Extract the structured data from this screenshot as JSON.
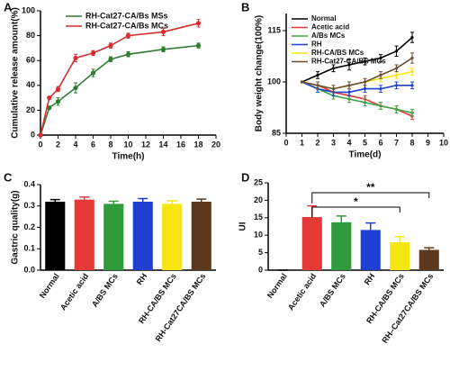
{
  "chart_data": [
    {
      "type": "line",
      "label": "A",
      "xlabel": "Time(h)",
      "ylabel": "Cumulative release amount(%)",
      "xlim": [
        0,
        20
      ],
      "xticks": [
        0,
        2,
        4,
        6,
        8,
        10,
        12,
        14,
        16,
        18,
        20
      ],
      "ylim": [
        0,
        100
      ],
      "yticks": [
        0,
        20,
        40,
        60,
        80,
        100
      ],
      "legend": "upper left",
      "x": [
        0,
        1,
        2,
        4,
        6,
        8,
        10,
        14,
        18
      ],
      "series": [
        {
          "name": "RH-Cat27-CA/Bs MSs",
          "color": "#2e7d32",
          "values": [
            0,
            22,
            27,
            38,
            50,
            61,
            65,
            69,
            72
          ],
          "errors": [
            0,
            1,
            3,
            4,
            3,
            2,
            2,
            2,
            2
          ]
        },
        {
          "name": "RH-Cat27-CA/Bs MCs",
          "color": "#d32f2f",
          "values": [
            0,
            30,
            37,
            62,
            66,
            72,
            80,
            83,
            90
          ],
          "errors": [
            0,
            1,
            2,
            3,
            2,
            2,
            2,
            3,
            3
          ]
        }
      ]
    },
    {
      "type": "line",
      "label": "B",
      "xlabel": "Time(d)",
      "ylabel": "Body weight change(100%)",
      "xlim": [
        0,
        10
      ],
      "xticks": [
        0,
        1,
        2,
        3,
        4,
        5,
        6,
        7,
        8,
        9,
        10
      ],
      "ylim": [
        85,
        120
      ],
      "yticks": [
        85,
        100,
        115
      ],
      "legend": "upper left",
      "x": [
        1,
        2,
        3,
        4,
        5,
        6,
        7,
        8
      ],
      "series": [
        {
          "name": "Normal",
          "color": "#000000",
          "values": [
            100,
            102,
            104,
            105,
            106,
            107,
            109,
            113
          ],
          "errors": [
            0,
            1,
            1,
            1.5,
            1,
            1,
            1.5,
            1.5
          ]
        },
        {
          "name": "Acetic acid",
          "color": "#e53935",
          "values": [
            100,
            99,
            97,
            96,
            95,
            93,
            92,
            90
          ],
          "errors": [
            0,
            1,
            1,
            1,
            1,
            1,
            1,
            1
          ]
        },
        {
          "name": "A/Bs MCs",
          "color": "#43a047",
          "values": [
            100,
            98,
            96,
            95,
            94,
            93,
            92,
            91
          ],
          "errors": [
            0,
            1,
            1,
            1,
            1,
            1,
            1,
            1
          ]
        },
        {
          "name": "RH",
          "color": "#1e3fd0",
          "values": [
            100,
            98,
            97,
            97,
            98,
            98,
            99,
            99
          ],
          "errors": [
            0,
            1,
            1,
            1,
            1,
            1,
            1,
            1
          ]
        },
        {
          "name": "RH-CA/BS MCs",
          "color": "#f5e612",
          "values": [
            100,
            99,
            98,
            99,
            100,
            101,
            102,
            103
          ],
          "errors": [
            0,
            1,
            1,
            1,
            1,
            1,
            1,
            1
          ]
        },
        {
          "name": "RH-Cat27-CA/BS MCs",
          "color": "#6d4c30",
          "values": [
            100,
            99,
            98,
            99,
            100,
            102,
            104,
            107
          ],
          "errors": [
            0,
            1,
            1,
            1,
            1,
            1,
            1,
            1.5
          ]
        }
      ]
    },
    {
      "type": "bar",
      "label": "C",
      "ylabel": "Gastric quality(g)",
      "ylim": [
        0,
        0.4
      ],
      "yticks": [
        {
          "value": 0,
          "label": "0.0"
        },
        0.1,
        0.2,
        0.3,
        0.4
      ],
      "categories": [
        "Normal",
        "Acetic acid",
        "A/BS MCs",
        "RH",
        "RH-CA/BS MCs",
        "RH-Cat27CA/BS MCs"
      ],
      "values": [
        0.32,
        0.33,
        0.31,
        0.32,
        0.31,
        0.32
      ],
      "errors": [
        0.01,
        0.012,
        0.012,
        0.015,
        0.014,
        0.012
      ],
      "colors": [
        "#000000",
        "#e53935",
        "#2e9a3a",
        "#1e3fd0",
        "#f5e612",
        "#5d3a1e"
      ]
    },
    {
      "type": "bar",
      "label": "D",
      "ylabel": "UI",
      "ylim": [
        0,
        25
      ],
      "yticks": [
        0,
        5,
        10,
        15,
        20,
        25
      ],
      "categories": [
        "Normal",
        "Acetic acid",
        "A/BS MCs",
        "RH",
        "RH-CA/BS MCs",
        "RH–Cat27CA/BS MCs"
      ],
      "values": [
        0,
        15.2,
        13.7,
        11.5,
        8,
        5.8
      ],
      "errors": [
        0,
        3.2,
        1.8,
        2,
        1.6,
        0.6
      ],
      "colors": [
        "#000000",
        "#e53935",
        "#2e9a3a",
        "#1e3fd0",
        "#f5e612",
        "#5d3a1e"
      ],
      "annotations": [
        "**",
        "*"
      ]
    }
  ]
}
